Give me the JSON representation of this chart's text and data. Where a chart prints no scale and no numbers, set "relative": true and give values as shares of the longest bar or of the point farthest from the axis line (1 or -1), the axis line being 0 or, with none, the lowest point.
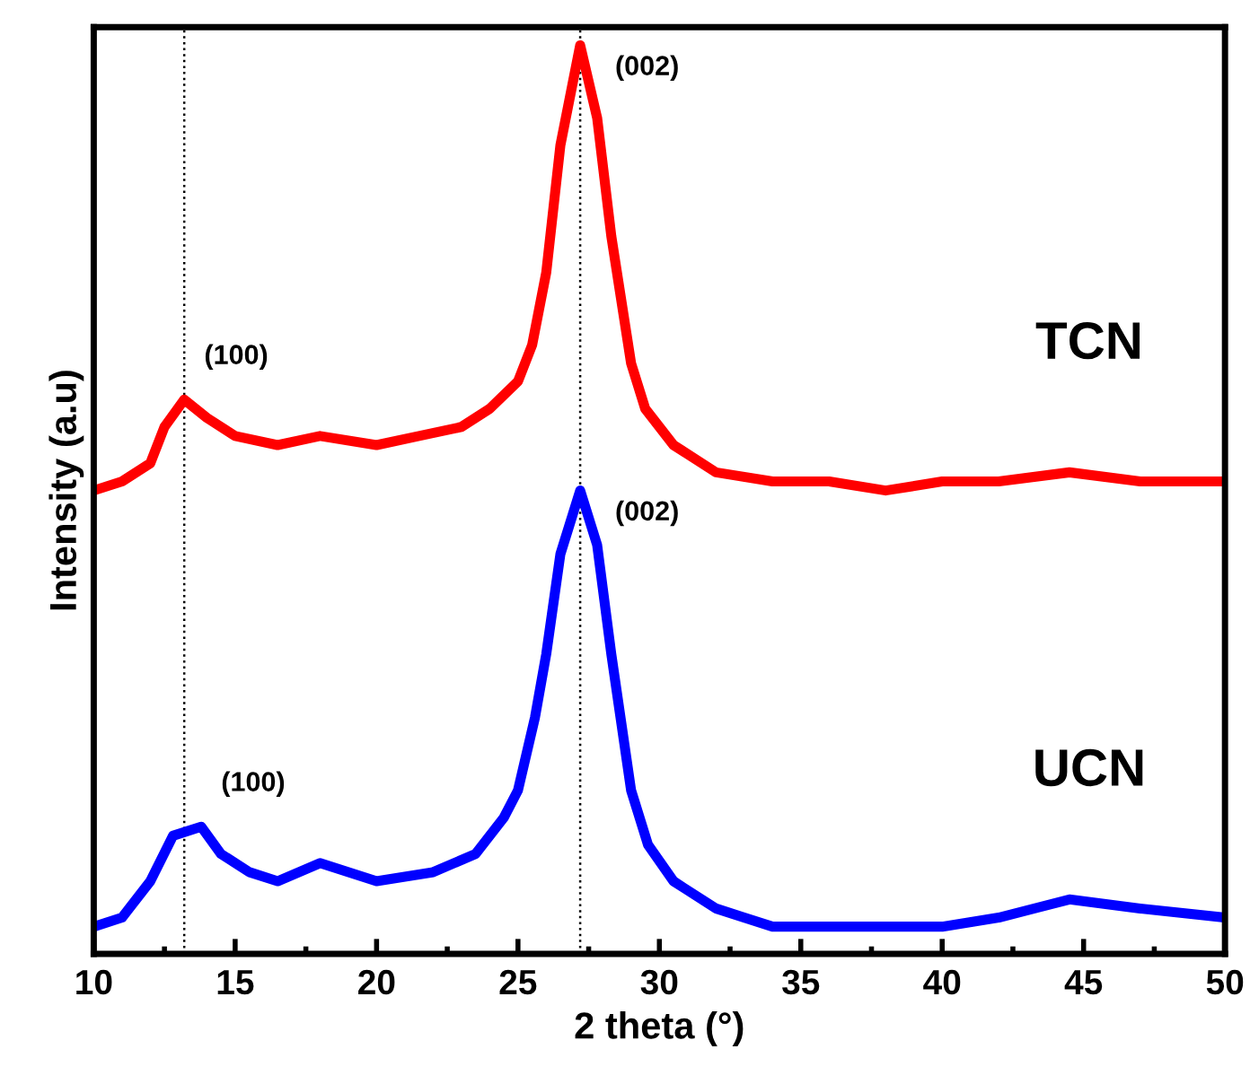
{
  "chart_data": {
    "type": "line",
    "xlabel": "2 theta (°)",
    "ylabel": "Intensity (a.u)",
    "relative": true,
    "xlim": [
      10,
      50
    ],
    "xticks": [
      10,
      15,
      20,
      25,
      30,
      35,
      40,
      45,
      50
    ],
    "tick_labels": "x",
    "grid": false,
    "legend": false,
    "marker": "none",
    "line_style": "solid",
    "series": [
      {
        "name": "TCN",
        "color": "#ff0000",
        "x": [
          10,
          11,
          12,
          12.5,
          13.2,
          14,
          15,
          16.5,
          18,
          20,
          21.5,
          23,
          24,
          25,
          25.5,
          26,
          26.5,
          27.2,
          27.8,
          28.3,
          29,
          29.5,
          30.5,
          32,
          34,
          36,
          38,
          40,
          42,
          44.5,
          47,
          50
        ],
        "values": [
          0.51,
          0.52,
          0.54,
          0.58,
          0.61,
          0.59,
          0.57,
          0.56,
          0.57,
          0.56,
          0.57,
          0.58,
          0.6,
          0.63,
          0.67,
          0.75,
          0.89,
          1.0,
          0.92,
          0.79,
          0.65,
          0.6,
          0.56,
          0.53,
          0.52,
          0.52,
          0.51,
          0.52,
          0.52,
          0.53,
          0.52,
          0.52
        ]
      },
      {
        "name": "UCN",
        "color": "#0000ff",
        "x": [
          10,
          11,
          12,
          12.8,
          13.8,
          14.5,
          15.5,
          16.5,
          18,
          20,
          22,
          23.5,
          24.5,
          25,
          25.6,
          26,
          26.5,
          27.2,
          27.8,
          28.3,
          29,
          29.6,
          30.5,
          32,
          34,
          36,
          38,
          40,
          42,
          44.5,
          47,
          50
        ],
        "values": [
          0.03,
          0.04,
          0.08,
          0.13,
          0.14,
          0.11,
          0.09,
          0.08,
          0.1,
          0.08,
          0.09,
          0.11,
          0.15,
          0.18,
          0.26,
          0.33,
          0.44,
          0.51,
          0.45,
          0.33,
          0.18,
          0.12,
          0.08,
          0.05,
          0.03,
          0.03,
          0.03,
          0.03,
          0.04,
          0.06,
          0.05,
          0.04
        ]
      }
    ],
    "ref_lines": [
      {
        "axis": "x",
        "value": 13.2,
        "color": "#000000",
        "line_style": "dotted"
      },
      {
        "axis": "x",
        "value": 27.2,
        "color": "#000000",
        "line_style": "dotted"
      }
    ],
    "annotations": [
      {
        "text": "(100)",
        "x": 13.2,
        "y": 0.61
      },
      {
        "text": "(002)",
        "x": 27.2,
        "y": 1.0
      },
      {
        "text": "(100)",
        "x": 13.8,
        "y": 0.14
      },
      {
        "text": "(002)",
        "x": 27.2,
        "y": 0.51
      }
    ]
  }
}
